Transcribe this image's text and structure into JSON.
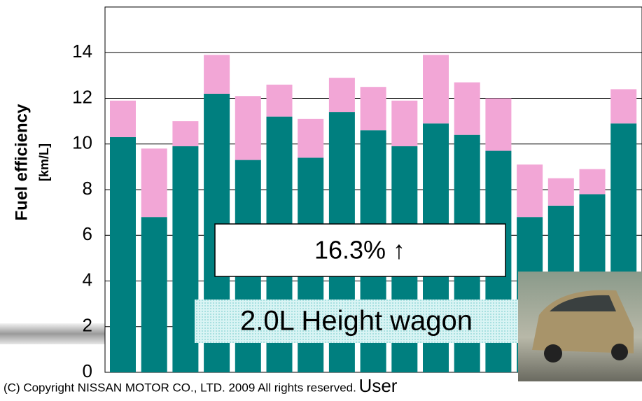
{
  "chart_data": {
    "type": "stacked_bar",
    "y_label": "Fuel efficiency",
    "y_unit": "[km/L]",
    "x_label": "User",
    "categories": [
      null,
      null,
      null,
      null,
      null,
      null,
      null,
      null,
      null,
      null,
      null,
      null,
      null,
      null,
      null,
      null,
      null
    ],
    "series": [
      {
        "color": "#007f7f",
        "values": [
          10.3,
          6.8,
          9.9,
          12.2,
          9.3,
          11.2,
          9.4,
          11.4,
          10.6,
          9.9,
          10.9,
          10.4,
          9.7,
          6.8,
          7.3,
          7.8,
          10.9
        ]
      },
      {
        "color": "#f2a6d6",
        "values": [
          1.6,
          3.0,
          1.1,
          1.7,
          2.8,
          1.4,
          1.7,
          1.5,
          1.9,
          2.0,
          3.0,
          2.3,
          2.3,
          2.3,
          1.2,
          1.1,
          1.5
        ]
      }
    ],
    "ylim": [
      0,
      16
    ],
    "yticks": [
      0,
      2,
      4,
      6,
      8,
      10,
      12,
      14
    ],
    "grid": true,
    "annotations": [
      "16.3% ↑",
      "2.0L Height wagon",
      "(C) Copyright NISSAN MOTOR CO., LTD. 2009 All rights reserved."
    ]
  }
}
